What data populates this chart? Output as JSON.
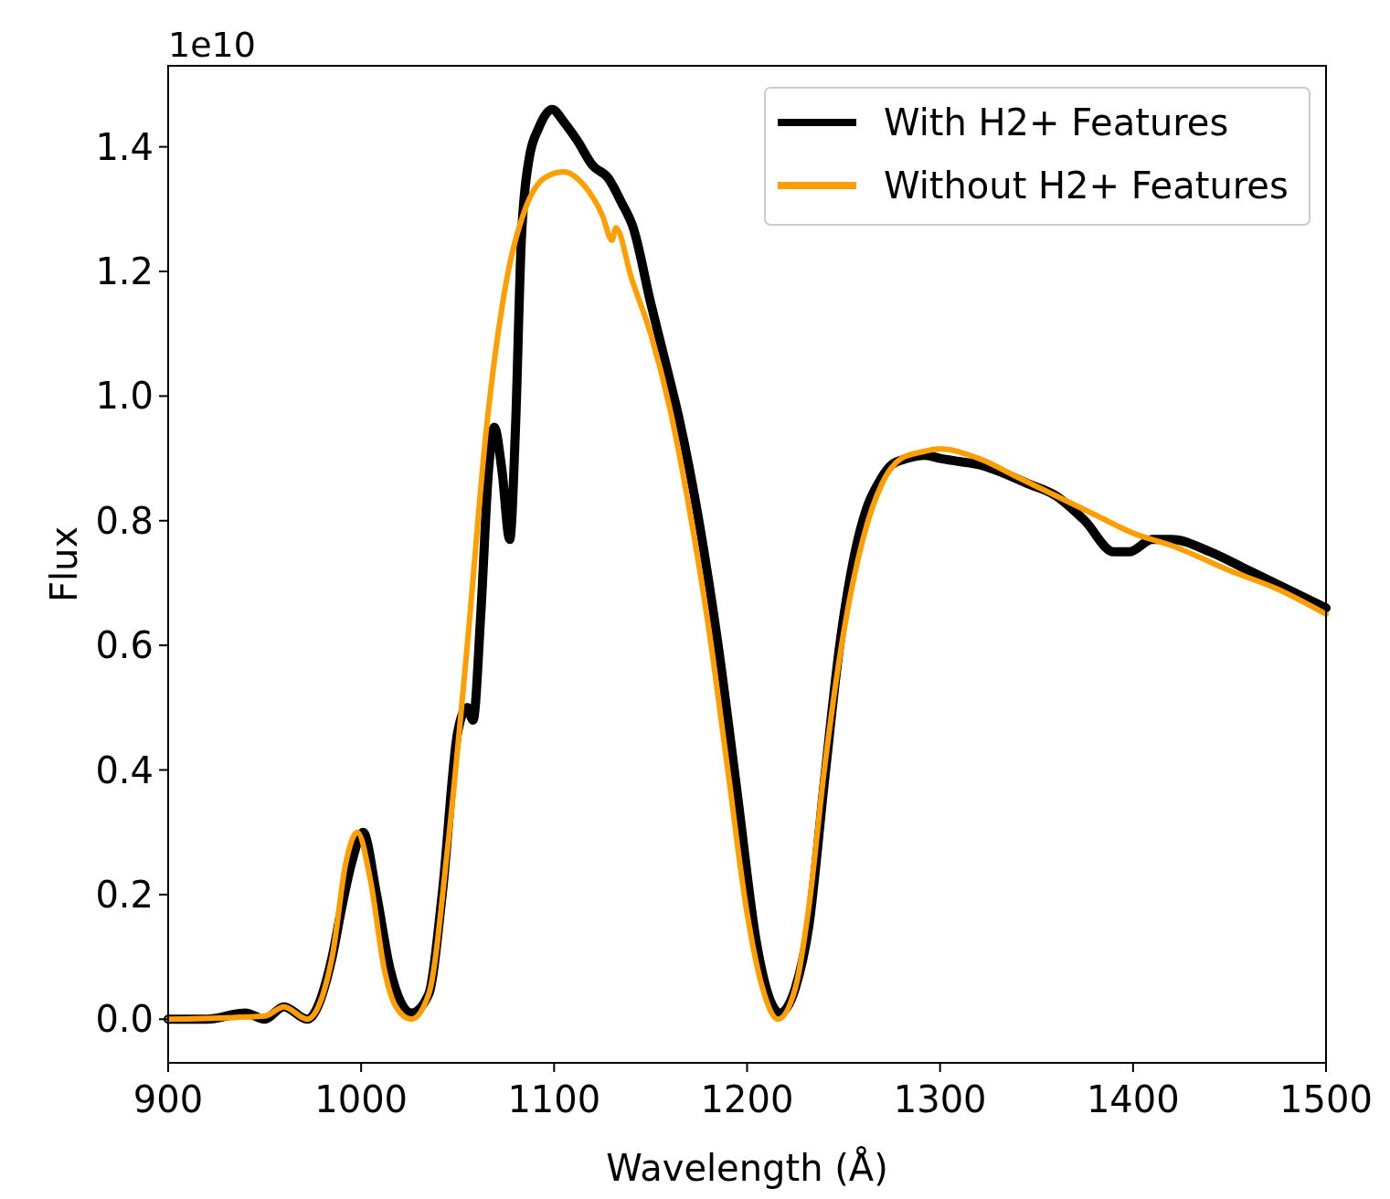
{
  "chart_data": {
    "type": "line",
    "xlabel": "Wavelength (Å)",
    "ylabel": "Flux",
    "annotations": [
      "1e10"
    ],
    "xlim": [
      900,
      1500
    ],
    "xticks": [
      900,
      1000,
      1100,
      1200,
      1300,
      1400,
      1500
    ],
    "ylim": [
      -0.07,
      1.53
    ],
    "yticks": [
      {
        "value": 0,
        "label": "0.0"
      },
      0.2,
      0.4,
      0.6,
      0.8,
      {
        "value": 1,
        "label": "1.0"
      },
      1.2,
      1.4
    ],
    "grid": false,
    "legend": "top right",
    "marker": "none",
    "line_style": "solid",
    "series": [
      {
        "name": "With H2+ Features",
        "color": "#000000",
        "x": [
          900,
          920,
          940,
          950,
          960,
          972,
          985,
          990,
          995,
          1001,
          1008,
          1015,
          1026,
          1035,
          1042,
          1050,
          1055,
          1058,
          1062,
          1066,
          1069,
          1073,
          1077,
          1080,
          1083,
          1087,
          1092,
          1099,
          1105,
          1112,
          1120,
          1128,
          1135,
          1141,
          1150,
          1158,
          1165,
          1175,
          1185,
          1195,
          1205,
          1212,
          1217,
          1225,
          1232,
          1240,
          1248,
          1256,
          1262,
          1268,
          1275,
          1283,
          1292,
          1300,
          1310,
          1320,
          1330,
          1345,
          1360,
          1375,
          1390,
          1398,
          1410,
          1420,
          1440,
          1460,
          1480,
          1500
        ],
        "values": [
          0,
          0,
          0.01,
          0,
          0.02,
          0,
          0.1,
          0.18,
          0.25,
          0.3,
          0.2,
          0.08,
          0.01,
          0.04,
          0.2,
          0.46,
          0.5,
          0.48,
          0.65,
          0.88,
          0.95,
          0.88,
          0.77,
          0.95,
          1.25,
          1.38,
          1.43,
          1.46,
          1.44,
          1.41,
          1.37,
          1.35,
          1.31,
          1.27,
          1.15,
          1.05,
          0.96,
          0.8,
          0.6,
          0.36,
          0.12,
          0.03,
          0.01,
          0.05,
          0.15,
          0.38,
          0.6,
          0.75,
          0.82,
          0.86,
          0.89,
          0.9,
          0.905,
          0.9,
          0.895,
          0.89,
          0.88,
          0.86,
          0.84,
          0.8,
          0.75,
          0.75,
          0.77,
          0.77,
          0.75,
          0.72,
          0.69,
          0.66
        ]
      },
      {
        "name": "Without H2+ Features",
        "color": "#ff9e00",
        "x": [
          900,
          950,
          960,
          972,
          985,
          992,
          998,
          1005,
          1012,
          1018,
          1026,
          1035,
          1045,
          1055,
          1065,
          1075,
          1085,
          1095,
          1105,
          1115,
          1125,
          1130,
          1132,
          1140,
          1150,
          1160,
          1170,
          1180,
          1190,
          1200,
          1208,
          1216,
          1225,
          1232,
          1240,
          1250,
          1260,
          1270,
          1280,
          1290,
          1300,
          1320,
          1340,
          1360,
          1380,
          1400,
          1420,
          1450,
          1475,
          1500
        ],
        "values": [
          0,
          0.005,
          0.02,
          0,
          0.1,
          0.25,
          0.3,
          0.22,
          0.08,
          0.02,
          0,
          0.04,
          0.28,
          0.6,
          0.95,
          1.18,
          1.3,
          1.35,
          1.36,
          1.34,
          1.29,
          1.25,
          1.27,
          1.19,
          1.1,
          0.98,
          0.82,
          0.63,
          0.4,
          0.17,
          0.05,
          0,
          0.05,
          0.18,
          0.4,
          0.62,
          0.77,
          0.86,
          0.9,
          0.91,
          0.915,
          0.9,
          0.87,
          0.84,
          0.81,
          0.78,
          0.76,
          0.72,
          0.69,
          0.65
        ]
      }
    ]
  }
}
